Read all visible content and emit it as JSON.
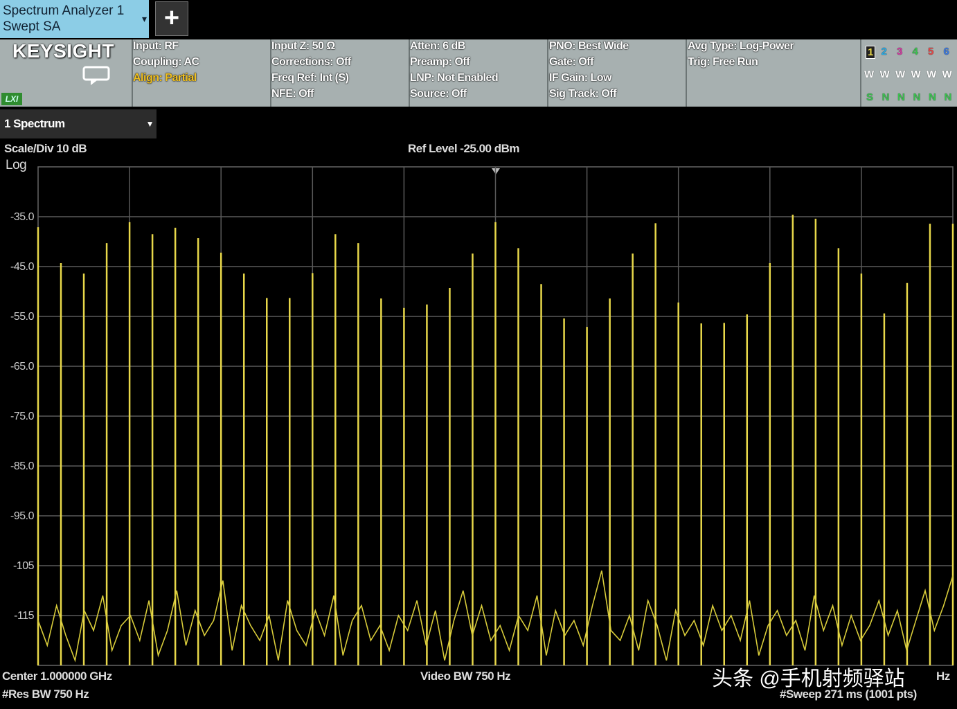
{
  "header": {
    "tab": {
      "line1": "Spectrum Analyzer 1",
      "line2": "Swept SA"
    },
    "add_button": "+"
  },
  "settings": {
    "brand": "KEYSIGHT",
    "badge": "LXI",
    "columns": [
      [
        "Input: RF",
        "Coupling: AC",
        "Align: Partial"
      ],
      [
        "Input Z: 50 Ω",
        "Corrections: Off",
        "Freq Ref: Int (S)",
        "NFE: Off"
      ],
      [
        "Atten: 6 dB",
        "Preamp: Off",
        "LNP: Not Enabled",
        "Source: Off"
      ],
      [
        "PNO: Best Wide",
        "Gate: Off",
        "IF Gain: Low",
        "Sig Track: Off"
      ],
      [
        "Avg Type: Log-Power",
        "Trig: Free Run"
      ]
    ],
    "traces": {
      "numbers": [
        "1",
        "2",
        "3",
        "4",
        "5",
        "6"
      ],
      "colors": [
        "#e8d84a",
        "#2aa8e0",
        "#d23aa0",
        "#3cc050",
        "#e04848",
        "#3a78e0"
      ],
      "types": [
        "W",
        "W",
        "W",
        "W",
        "W",
        "W"
      ],
      "detectors": [
        "S",
        "N",
        "N",
        "N",
        "N",
        "N"
      ]
    }
  },
  "window": {
    "tab": "1 Spectrum"
  },
  "chart_data": {
    "type": "spectrum",
    "scale": "Scale/Div 10 dB",
    "scale_type": "Log",
    "ref_level": "Ref Level -25.00 dBm",
    "ylim": [
      -125,
      -25
    ],
    "yticks": [
      {
        "value": -35,
        "label": "-35.0"
      },
      {
        "value": -45,
        "label": "-45.0"
      },
      {
        "value": -55,
        "label": "-55.0"
      },
      {
        "value": -65,
        "label": "-65.0"
      },
      {
        "value": -75,
        "label": "-75.0"
      },
      {
        "value": -85,
        "label": "-85.0"
      },
      {
        "value": -95,
        "label": "-95.0"
      },
      -105,
      -115
    ],
    "x_divisions": 10,
    "grid": true,
    "series": [
      {
        "style": "stems",
        "color": "#e8d84a",
        "values": [
          -37.1,
          -44.3,
          -46.4,
          -40.3,
          -36.1,
          -38.5,
          -37.2,
          -39.3,
          -42.2,
          -46.4,
          -51.3,
          -51.3,
          -46.3,
          -38.5,
          -40.3,
          -51.4,
          -53.3,
          -52.6,
          -49.3,
          -42.4,
          -36.1,
          -41.3,
          -48.5,
          -55.4,
          -57.1,
          -51.4,
          -42.4,
          -36.3,
          -52.2,
          -56.4,
          -56.3,
          -54.6,
          -44.3,
          -34.6,
          -35.4,
          -41.3,
          -46.4,
          -54.4,
          -48.3,
          -36.4,
          -36.4
        ]
      },
      {
        "style": "trace",
        "color": "#d8cc3a",
        "values": [
          -116,
          -121,
          -113,
          -119,
          -124,
          -114,
          -118,
          -111,
          -122,
          -117,
          -115,
          -120,
          -112,
          -123,
          -118,
          -110,
          -121,
          -114,
          -119,
          -116,
          -108,
          -122,
          -113,
          -117,
          -120,
          -115,
          -124,
          -112,
          -118,
          -121,
          -114,
          -119,
          -111,
          -123,
          -116,
          -113,
          -120,
          -117,
          -122,
          -115,
          -118,
          -112,
          -121,
          -114,
          -124,
          -116,
          -110,
          -119,
          -113,
          -120,
          -117,
          -122,
          -115,
          -118,
          -111,
          -123,
          -114,
          -119,
          -116,
          -121,
          -113,
          -106,
          -118,
          -120,
          -115,
          -122,
          -112,
          -117,
          -124,
          -114,
          -119,
          -116,
          -121,
          -113,
          -118,
          -115,
          -120,
          -112,
          -123,
          -117,
          -114,
          -119,
          -116,
          -122,
          -111,
          -118,
          -113,
          -121,
          -115,
          -120,
          -117,
          -112,
          -119,
          -114,
          -122,
          -116,
          -110,
          -118,
          -113,
          -107
        ]
      }
    ]
  },
  "footer": {
    "center": "Center 1.000000 GHz",
    "res_bw": "#Res BW 750 Hz",
    "video_bw": "Video BW 750 Hz",
    "span_tail": "Hz",
    "sweep": "#Sweep 271 ms (1001 pts)",
    "watermark": "头条 @手机射频驿站"
  }
}
